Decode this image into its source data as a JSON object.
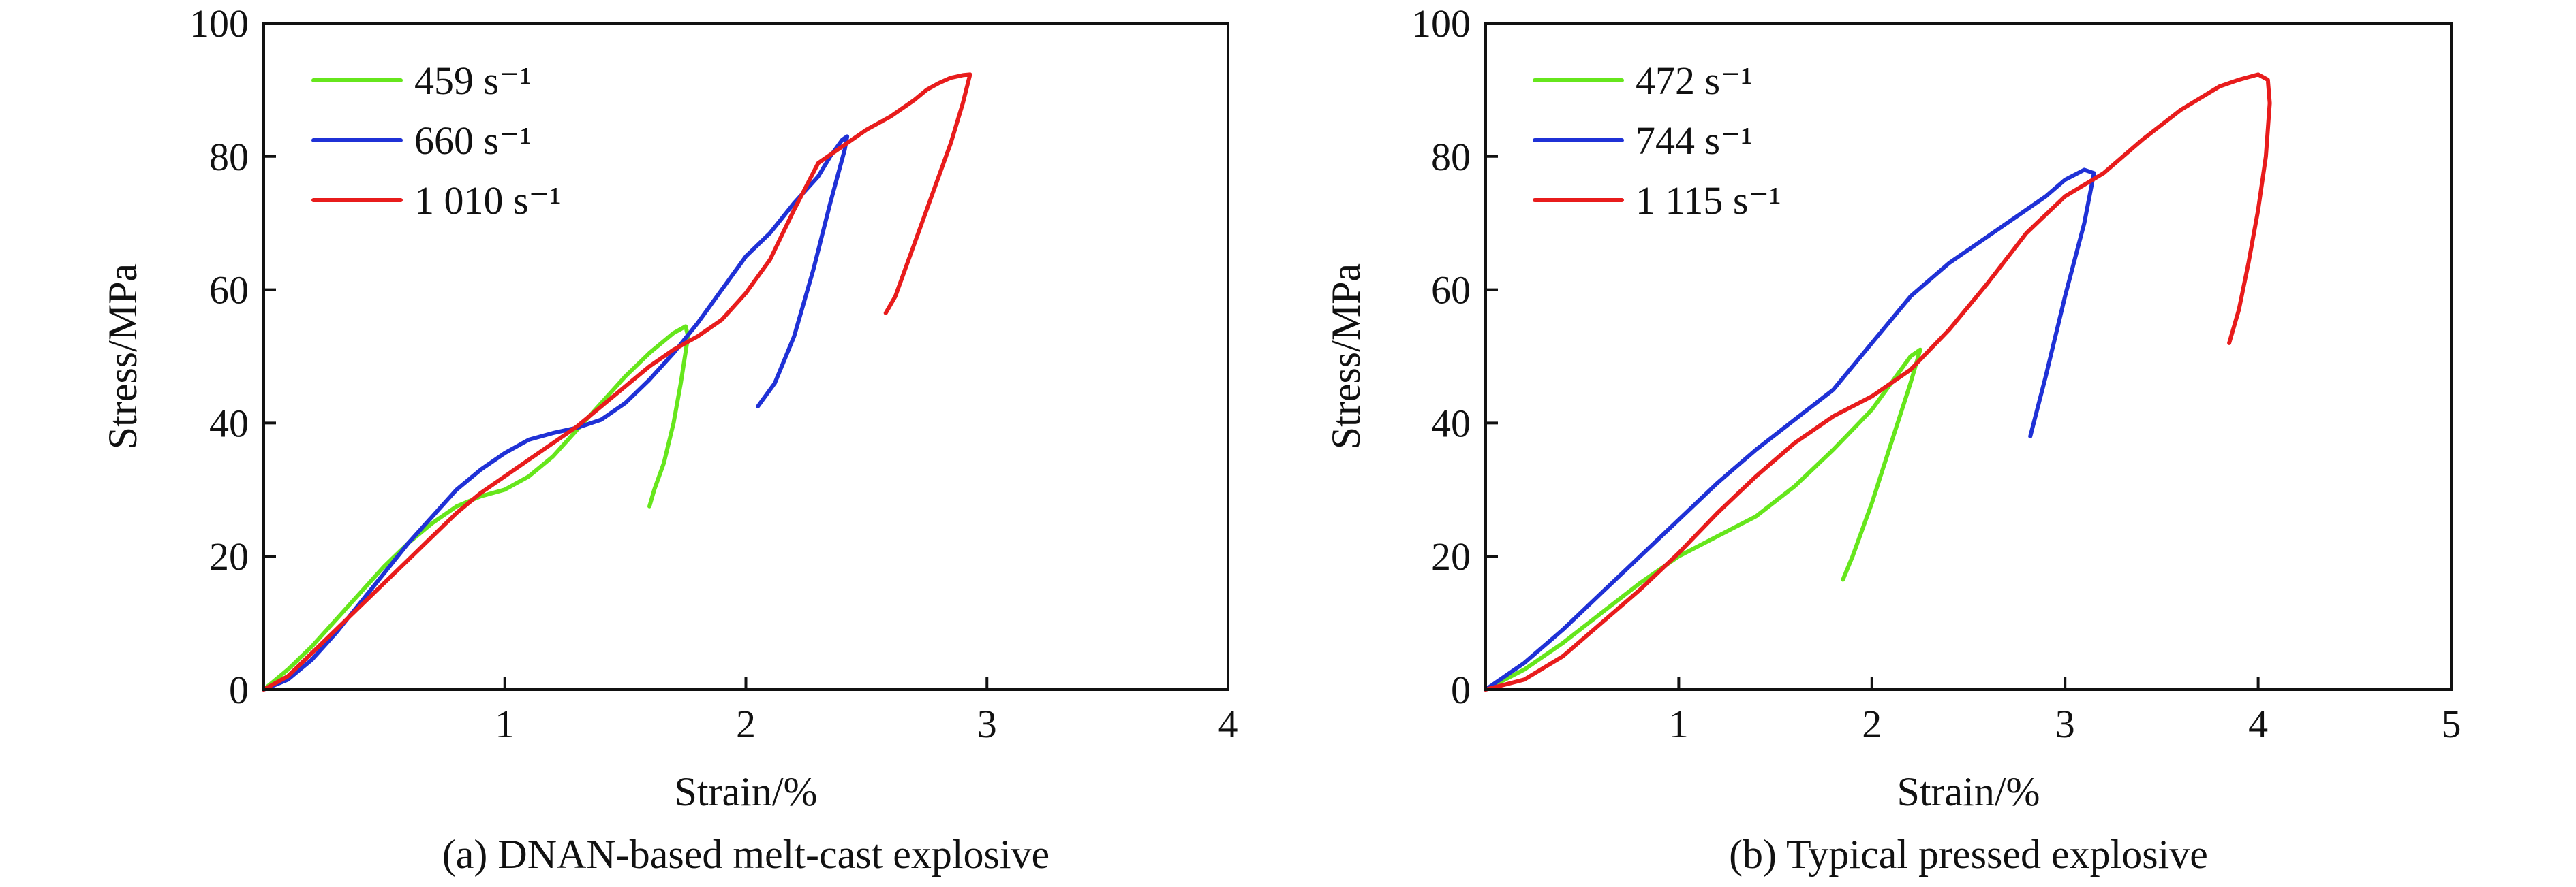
{
  "chart_data": [
    {
      "type": "line",
      "caption": "(a) DNAN-based melt-cast explosive",
      "xlabel": "Strain/%",
      "ylabel": "Stress/MPa",
      "xlim": [
        0,
        4
      ],
      "ylim": [
        0,
        100
      ],
      "xticks": [
        1,
        2,
        3,
        4
      ],
      "yticks": [
        0,
        20,
        40,
        60,
        80,
        100
      ],
      "legend_position": "top-left",
      "series": [
        {
          "name": "459 s⁻¹",
          "color": "#66e61c",
          "points": [
            [
              0.0,
              0
            ],
            [
              0.1,
              3
            ],
            [
              0.2,
              6.5
            ],
            [
              0.3,
              10.5
            ],
            [
              0.4,
              14.5
            ],
            [
              0.5,
              18.5
            ],
            [
              0.6,
              22
            ],
            [
              0.7,
              25
            ],
            [
              0.8,
              27.5
            ],
            [
              0.9,
              29
            ],
            [
              1.0,
              30
            ],
            [
              1.1,
              32
            ],
            [
              1.2,
              35
            ],
            [
              1.3,
              39
            ],
            [
              1.4,
              43
            ],
            [
              1.5,
              47
            ],
            [
              1.6,
              50.5
            ],
            [
              1.7,
              53.5
            ],
            [
              1.75,
              54.5
            ],
            [
              1.76,
              53
            ],
            [
              1.73,
              46
            ],
            [
              1.7,
              40
            ],
            [
              1.66,
              34
            ],
            [
              1.62,
              30
            ],
            [
              1.6,
              27.5
            ]
          ]
        },
        {
          "name": "660 s⁻¹",
          "color": "#1f31d6",
          "points": [
            [
              0.0,
              0
            ],
            [
              0.1,
              1.5
            ],
            [
              0.2,
              4.5
            ],
            [
              0.3,
              8.5
            ],
            [
              0.4,
              13
            ],
            [
              0.5,
              17.5
            ],
            [
              0.6,
              22
            ],
            [
              0.7,
              26
            ],
            [
              0.8,
              30
            ],
            [
              0.9,
              33
            ],
            [
              1.0,
              35.5
            ],
            [
              1.1,
              37.5
            ],
            [
              1.2,
              38.5
            ],
            [
              1.3,
              39.3
            ],
            [
              1.4,
              40.5
            ],
            [
              1.5,
              43
            ],
            [
              1.6,
              46.5
            ],
            [
              1.7,
              50.5
            ],
            [
              1.8,
              55
            ],
            [
              1.9,
              60
            ],
            [
              2.0,
              65
            ],
            [
              2.1,
              68.5
            ],
            [
              2.2,
              73
            ],
            [
              2.3,
              77
            ],
            [
              2.35,
              80
            ],
            [
              2.4,
              82.5
            ],
            [
              2.42,
              83
            ],
            [
              2.41,
              81
            ],
            [
              2.35,
              73
            ],
            [
              2.28,
              63
            ],
            [
              2.2,
              53
            ],
            [
              2.12,
              46
            ],
            [
              2.05,
              42.5
            ]
          ]
        },
        {
          "name": "1 010 s⁻¹",
          "color": "#e81c1c",
          "points": [
            [
              0.0,
              0
            ],
            [
              0.1,
              2
            ],
            [
              0.2,
              5.5
            ],
            [
              0.3,
              9
            ],
            [
              0.4,
              12.5
            ],
            [
              0.5,
              16
            ],
            [
              0.6,
              19.5
            ],
            [
              0.7,
              23
            ],
            [
              0.8,
              26.5
            ],
            [
              0.9,
              29.5
            ],
            [
              1.0,
              32
            ],
            [
              1.1,
              34.5
            ],
            [
              1.2,
              37
            ],
            [
              1.3,
              39.5
            ],
            [
              1.4,
              42.5
            ],
            [
              1.5,
              45.5
            ],
            [
              1.6,
              48.5
            ],
            [
              1.7,
              51
            ],
            [
              1.8,
              53
            ],
            [
              1.9,
              55.5
            ],
            [
              2.0,
              59.5
            ],
            [
              2.1,
              64.5
            ],
            [
              2.2,
              72
            ],
            [
              2.3,
              79
            ],
            [
              2.4,
              81.5
            ],
            [
              2.5,
              84
            ],
            [
              2.6,
              86
            ],
            [
              2.7,
              88.5
            ],
            [
              2.75,
              90
            ],
            [
              2.8,
              91
            ],
            [
              2.85,
              91.8
            ],
            [
              2.9,
              92.2
            ],
            [
              2.93,
              92.3
            ],
            [
              2.9,
              88
            ],
            [
              2.85,
              82
            ],
            [
              2.78,
              75
            ],
            [
              2.7,
              67
            ],
            [
              2.62,
              59
            ],
            [
              2.58,
              56.5
            ]
          ]
        }
      ]
    },
    {
      "type": "line",
      "caption": "(b) Typical pressed explosive",
      "xlabel": "Strain/%",
      "ylabel": "Stress/MPa",
      "xlim": [
        0,
        5
      ],
      "ylim": [
        0,
        100
      ],
      "xticks": [
        1,
        2,
        3,
        4,
        5
      ],
      "yticks": [
        0,
        20,
        40,
        60,
        80,
        100
      ],
      "legend_position": "top-left",
      "series": [
        {
          "name": "472 s⁻¹",
          "color": "#66e61c",
          "points": [
            [
              0.0,
              0
            ],
            [
              0.2,
              3
            ],
            [
              0.4,
              7
            ],
            [
              0.6,
              11.5
            ],
            [
              0.8,
              16
            ],
            [
              1.0,
              20
            ],
            [
              1.2,
              23
            ],
            [
              1.4,
              26
            ],
            [
              1.6,
              30.5
            ],
            [
              1.8,
              36
            ],
            [
              2.0,
              42
            ],
            [
              2.1,
              46
            ],
            [
              2.2,
              50
            ],
            [
              2.25,
              51
            ],
            [
              2.2,
              46
            ],
            [
              2.1,
              37
            ],
            [
              2.0,
              28
            ],
            [
              1.9,
              20
            ],
            [
              1.85,
              16.5
            ]
          ]
        },
        {
          "name": "744 s⁻¹",
          "color": "#1f31d6",
          "points": [
            [
              0.0,
              0
            ],
            [
              0.2,
              4
            ],
            [
              0.4,
              9
            ],
            [
              0.6,
              14.5
            ],
            [
              0.8,
              20
            ],
            [
              1.0,
              25.5
            ],
            [
              1.2,
              31
            ],
            [
              1.4,
              36
            ],
            [
              1.6,
              40.5
            ],
            [
              1.8,
              45
            ],
            [
              2.0,
              52
            ],
            [
              2.2,
              59
            ],
            [
              2.4,
              64
            ],
            [
              2.6,
              68
            ],
            [
              2.8,
              72
            ],
            [
              2.9,
              74
            ],
            [
              3.0,
              76.5
            ],
            [
              3.1,
              78
            ],
            [
              3.15,
              77.5
            ],
            [
              3.1,
              70
            ],
            [
              3.0,
              59
            ],
            [
              2.9,
              47
            ],
            [
              2.82,
              38
            ]
          ]
        },
        {
          "name": "1 115 s⁻¹",
          "color": "#e81c1c",
          "points": [
            [
              0.0,
              0
            ],
            [
              0.2,
              1.5
            ],
            [
              0.4,
              5
            ],
            [
              0.6,
              10
            ],
            [
              0.8,
              15
            ],
            [
              1.0,
              20.5
            ],
            [
              1.2,
              26.5
            ],
            [
              1.4,
              32
            ],
            [
              1.6,
              37
            ],
            [
              1.8,
              41
            ],
            [
              2.0,
              44
            ],
            [
              2.2,
              48
            ],
            [
              2.4,
              54
            ],
            [
              2.6,
              61
            ],
            [
              2.8,
              68.5
            ],
            [
              3.0,
              74
            ],
            [
              3.2,
              77.5
            ],
            [
              3.4,
              82.5
            ],
            [
              3.6,
              87
            ],
            [
              3.8,
              90.5
            ],
            [
              3.9,
              91.5
            ],
            [
              4.0,
              92.3
            ],
            [
              4.05,
              91.5
            ],
            [
              4.06,
              88
            ],
            [
              4.04,
              80
            ],
            [
              4.0,
              72
            ],
            [
              3.95,
              64
            ],
            [
              3.9,
              57
            ],
            [
              3.85,
              52
            ]
          ]
        }
      ]
    }
  ]
}
